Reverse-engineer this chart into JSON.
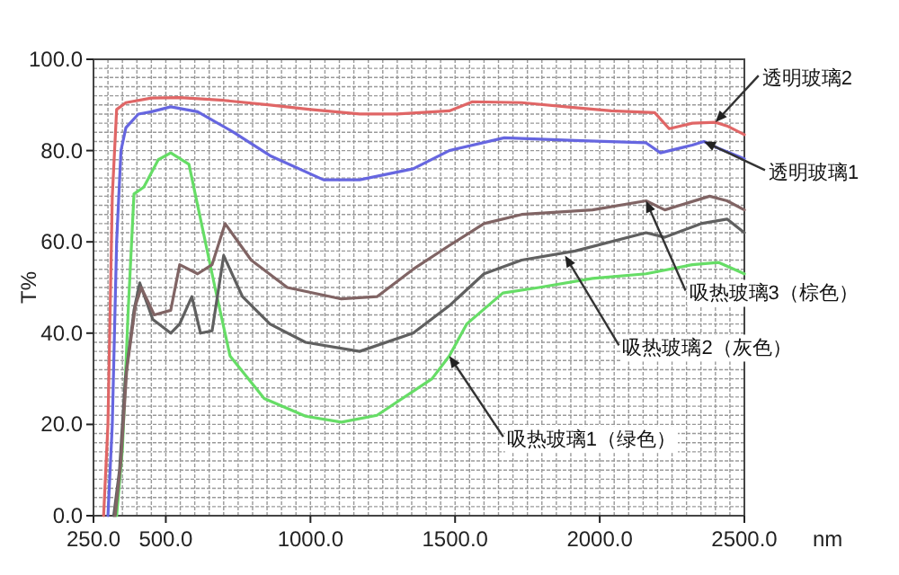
{
  "chart_data": {
    "type": "line",
    "ylabel": "T%",
    "xlabel": "nm",
    "xlim": [
      250,
      2500
    ],
    "ylim": [
      0,
      100
    ],
    "xticks": [
      {
        "value": 250,
        "label": "250.0"
      },
      {
        "value": 500,
        "label": "500.0"
      },
      {
        "value": 1000,
        "label": "1000.0"
      },
      {
        "value": 1500,
        "label": "1500.0"
      },
      {
        "value": 2000,
        "label": "2000.0"
      },
      {
        "value": 2500,
        "label": "2500.0"
      }
    ],
    "yticks": [
      {
        "value": 0,
        "label": "0.0"
      },
      {
        "value": 20,
        "label": "20.0"
      },
      {
        "value": 40,
        "label": "40.0"
      },
      {
        "value": 60,
        "label": "60.0"
      },
      {
        "value": 80,
        "label": "80.0"
      },
      {
        "value": 100,
        "label": "100.0"
      }
    ],
    "grid": true,
    "line_style": "solid",
    "marker": "none",
    "series": [
      {
        "color": "#e06666",
        "x": [
          285,
          300,
          315,
          330,
          362,
          450,
          548,
          700,
          860,
          1000,
          1170,
          1300,
          1480,
          1560,
          1730,
          1900,
          2040,
          2190,
          2240,
          2320,
          2400,
          2440,
          2500
        ],
        "values": [
          0,
          20,
          70,
          89,
          90.5,
          91.5,
          91.6,
          91,
          90,
          89,
          88,
          88,
          88.7,
          90.7,
          90.5,
          89.5,
          88.7,
          88.3,
          84.8,
          86,
          86.2,
          85.4,
          83.5
        ]
      },
      {
        "color": "#6666e0",
        "x": [
          300,
          315,
          330,
          345,
          362,
          405,
          450,
          517,
          610,
          735,
          860,
          1045,
          1170,
          1355,
          1480,
          1670,
          1915,
          2160,
          2210,
          2320,
          2360,
          2410,
          2500
        ],
        "values": [
          0,
          20,
          60,
          80,
          85,
          88,
          88.5,
          89.6,
          88.5,
          84,
          78.9,
          73.6,
          73.6,
          76,
          80,
          82.8,
          82.2,
          81.7,
          79.5,
          81.2,
          82,
          80.5,
          78.2
        ]
      },
      {
        "color": "#66dd66",
        "x": [
          330,
          350,
          370,
          390,
          424,
          474,
          517,
          580,
          620,
          670,
          722,
          840,
          983,
          1107,
          1230,
          1420,
          1480,
          1540,
          1665,
          1790,
          1975,
          2160,
          2320,
          2410,
          2500
        ],
        "values": [
          0,
          14.6,
          45,
          70.5,
          72,
          78,
          79.5,
          77,
          65,
          50,
          35,
          25.7,
          21.8,
          20.5,
          22,
          30,
          35,
          42,
          48.8,
          50,
          52,
          53,
          55,
          55.5,
          53
        ]
      },
      {
        "color": "#606060",
        "x": [
          320,
          340,
          360,
          390,
          410,
          455,
          517,
          548,
          590,
          620,
          660,
          700,
          765,
          860,
          983,
          1170,
          1355,
          1480,
          1600,
          1730,
          1915,
          2160,
          2225,
          2350,
          2440,
          2500
        ],
        "values": [
          0,
          10,
          30,
          45,
          51,
          43,
          40,
          42,
          48,
          40,
          40.5,
          57,
          48,
          42,
          38,
          36,
          40,
          46,
          53,
          56,
          58,
          62,
          61,
          64,
          65,
          62
        ]
      },
      {
        "color": "#806464",
        "x": [
          325,
          345,
          365,
          395,
          415,
          460,
          517,
          548,
          610,
          660,
          705,
          795,
          920,
          1107,
          1230,
          1355,
          1480,
          1600,
          1730,
          1975,
          2160,
          2225,
          2380,
          2440,
          2500
        ],
        "values": [
          0,
          12,
          32,
          46,
          50,
          44,
          45,
          55,
          53,
          55,
          64,
          56,
          50,
          47.5,
          48,
          54,
          59.2,
          64,
          66,
          67,
          69,
          67,
          70,
          69,
          67
        ]
      }
    ],
    "annotations": [
      {
        "text": "透明玻璃2",
        "x": 2400,
        "y": 86.2
      },
      {
        "text": "透明玻璃1",
        "x": 2360,
        "y": 82
      },
      {
        "text": "吸热玻璃3（棕色）",
        "x": 2160,
        "y": 69
      },
      {
        "text": "吸热玻璃2（灰色）",
        "x": 1880,
        "y": 57
      },
      {
        "text": "吸热玻璃1（绿色）",
        "x": 1480,
        "y": 35
      }
    ]
  }
}
